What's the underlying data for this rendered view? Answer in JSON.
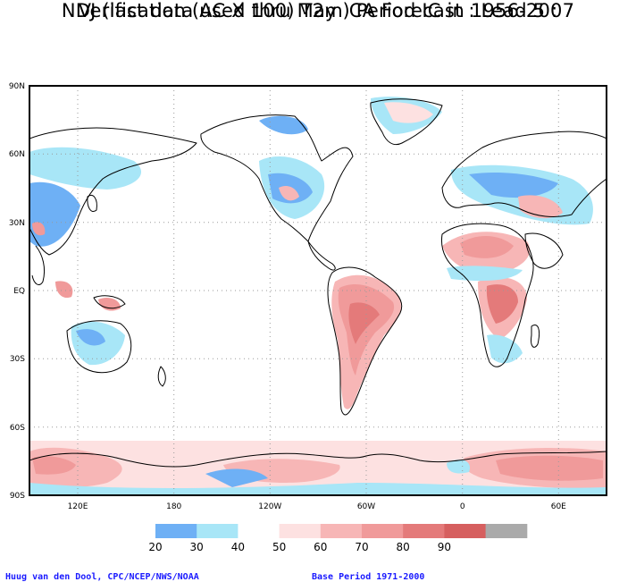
{
  "title_line1": "Verification (AC X 100) T2m CA Forecast : Lead 5 :",
  "title_line2": "NDJ (last data used thru May ) Period IC in 1956-2007",
  "lat_labels": [
    "90N",
    "60N",
    "30N",
    "EQ",
    "30S",
    "60S",
    "90S"
  ],
  "lon_labels": [
    "120E",
    "180",
    "120W",
    "60W",
    "0",
    "60E"
  ],
  "legend": {
    "labels": [
      "20",
      "30",
      "40",
      "50",
      "60",
      "70",
      "80",
      "90"
    ],
    "colors": [
      "#6eb0f5",
      "#a8e6f7",
      "#ffffff",
      "#fde1e1",
      "#f7b6b6",
      "#f09a9a",
      "#e47a7a",
      "#d65f5f",
      "#aaaaaa"
    ]
  },
  "credits": {
    "left": "Huug van den Dool, CPC/NCEP/NWS/NOAA",
    "right": "Base Period 1971-2000"
  },
  "colors": {
    "land_outline": "#000000",
    "grid": "#9a9a9a",
    "blue_20": "#6eb0f5",
    "cyan_30": "#a8e6f7",
    "pink_50": "#fde1e1",
    "pink_60": "#f7b6b6",
    "red_70": "#f09a9a",
    "red_80": "#e47a7a"
  }
}
